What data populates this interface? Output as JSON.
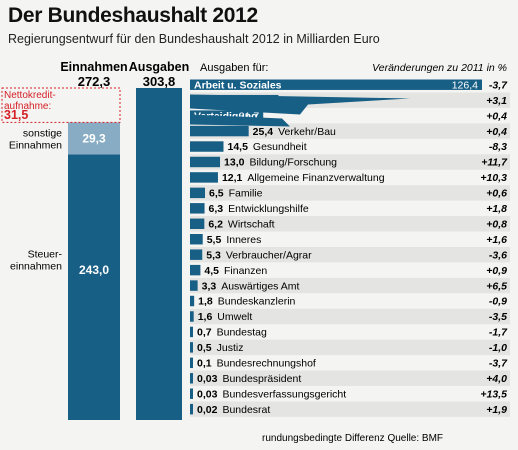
{
  "title": "Der Bundeshaushalt 2012",
  "subtitle": "Regierungsentwurf für den Bundeshaushalt 2012 in Milliarden Euro",
  "colors": {
    "bar": "#185f86",
    "bar_light": "#88acc3",
    "row_alt": "#e4e4e2",
    "positive": "#111111",
    "deficit": "#d52027"
  },
  "chart_data": [
    {
      "type": "bar",
      "categories": [
        "Einnahmen",
        "Ausgaben"
      ],
      "column_totals": [
        "272,3",
        "303,8"
      ],
      "series": [
        {
          "name": "Steuereinnahmen",
          "label": "Steuer-\neinnahmen",
          "values": [
            243.0,
            null
          ],
          "display": "243,0"
        },
        {
          "name": "sonstige Einnahmen",
          "label": "sonstige\nEinnahmen",
          "values": [
            29.3,
            null
          ],
          "display": "29,3"
        },
        {
          "name": "Nettokreditaufnahme",
          "label": "Nettokredit-\naufnahme:",
          "values": [
            31.5,
            null
          ],
          "display": "31,5"
        },
        {
          "name": "Ausgaben",
          "values": [
            null,
            303.8
          ],
          "display": "303,8"
        }
      ],
      "ylim": [
        0,
        303.8
      ]
    },
    {
      "type": "bar",
      "orientation": "horizontal",
      "header_left": "Ausgaben für:",
      "header_right": "Veränderungen zu 2011 in %",
      "xlim": [
        0,
        126.4
      ],
      "items": [
        {
          "label": "Arbeit u. Soziales",
          "value": 126.4,
          "display": "126,4",
          "change": "-3,7"
        },
        {
          "label": "Bundesschuld",
          "value": 38.3,
          "display": "38,3",
          "change": "+3,1"
        },
        {
          "label": "Verteidigung",
          "value": 31.7,
          "display": "31,7",
          "change": "+0,4"
        },
        {
          "label": "Verkehr/Bau",
          "value": 25.4,
          "display": "25,4",
          "change": "+0,4"
        },
        {
          "label": "Gesundheit",
          "value": 14.5,
          "display": "14,5",
          "change": "-8,3"
        },
        {
          "label": "Bildung/Forschung",
          "value": 13.0,
          "display": "13,0",
          "change": "+11,7"
        },
        {
          "label": "Allgemeine Finanzverwaltung",
          "value": 12.1,
          "display": "12,1",
          "change": "+10,3"
        },
        {
          "label": "Familie",
          "value": 6.5,
          "display": "6,5",
          "change": "+0,6"
        },
        {
          "label": "Entwicklungshilfe",
          "value": 6.3,
          "display": "6,3",
          "change": "+1,8"
        },
        {
          "label": "Wirtschaft",
          "value": 6.2,
          "display": "6,2",
          "change": "+0,8"
        },
        {
          "label": "Inneres",
          "value": 5.5,
          "display": "5,5",
          "change": "+1,6"
        },
        {
          "label": "Verbraucher/Agrar",
          "value": 5.3,
          "display": "5,3",
          "change": "-3,6"
        },
        {
          "label": "Finanzen",
          "value": 4.5,
          "display": "4,5",
          "change": "+0,9"
        },
        {
          "label": "Auswärtiges Amt",
          "value": 3.3,
          "display": "3,3",
          "change": "+6,5"
        },
        {
          "label": "Bundeskanzlerin",
          "value": 1.8,
          "display": "1,8",
          "change": "-0,9"
        },
        {
          "label": "Umwelt",
          "value": 1.6,
          "display": "1,6",
          "change": "-3,5"
        },
        {
          "label": "Bundestag",
          "value": 0.7,
          "display": "0,7",
          "change": "-1,7"
        },
        {
          "label": "Justiz",
          "value": 0.5,
          "display": "0,5",
          "change": "-1,0"
        },
        {
          "label": "Bundesrechnungshof",
          "value": 0.1,
          "display": "0,1",
          "change": "-3,7"
        },
        {
          "label": "Bundespräsident",
          "value": 0.03,
          "display": "0,03",
          "change": "+4,0"
        },
        {
          "label": "Bundesverfassungsgericht",
          "value": 0.03,
          "display": "0,03",
          "change": "+13,5"
        },
        {
          "label": "Bundesrat",
          "value": 0.02,
          "display": "0,02",
          "change": "+1,9"
        }
      ]
    }
  ],
  "footnote": "rundungsbedingte Differenz  Quelle: BMF"
}
